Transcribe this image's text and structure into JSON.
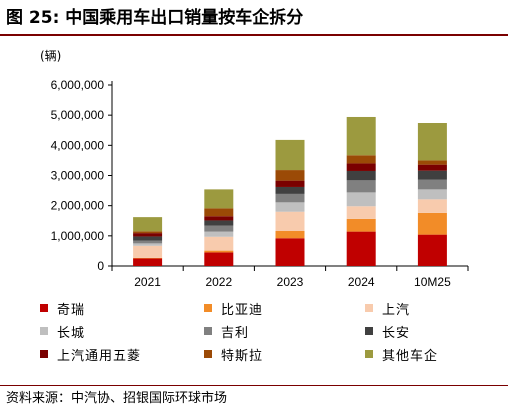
{
  "title": "图 25: 中国乘用车出口销量按车企拆分",
  "source": "资料来源：中汽协、招银国际环球市场",
  "chart_data": {
    "type": "bar",
    "stacked": true,
    "unit_label": "(辆)",
    "categories": [
      "2021",
      "2022",
      "2023",
      "2024",
      "10M25"
    ],
    "ylim": [
      0,
      6000000
    ],
    "yticks": [
      0,
      1000000,
      2000000,
      3000000,
      4000000,
      5000000,
      6000000
    ],
    "ytick_labels": [
      "0",
      "1,000,000",
      "2,000,000",
      "3,000,000",
      "4,000,000",
      "5,000,000",
      "6,000,000"
    ],
    "grid": false,
    "legend_position": "bottom",
    "series": [
      {
        "name": "奇瑞",
        "color": "#c00000",
        "values": [
          250000,
          450000,
          920000,
          1140000,
          1040000
        ]
      },
      {
        "name": "比亚迪",
        "color": "#f28c28",
        "values": [
          20000,
          60000,
          240000,
          420000,
          720000
        ]
      },
      {
        "name": "上汽",
        "color": "#f8cbad",
        "values": [
          400000,
          460000,
          640000,
          420000,
          450000
        ]
      },
      {
        "name": "长城",
        "color": "#bfbfbf",
        "values": [
          80000,
          170000,
          310000,
          460000,
          330000
        ]
      },
      {
        "name": "吉利",
        "color": "#808080",
        "values": [
          90000,
          200000,
          280000,
          400000,
          320000
        ]
      },
      {
        "name": "长安",
        "color": "#404040",
        "values": [
          140000,
          170000,
          230000,
          310000,
          300000
        ]
      },
      {
        "name": "上汽通用五菱",
        "color": "#7a0000",
        "values": [
          110000,
          140000,
          210000,
          250000,
          200000
        ]
      },
      {
        "name": "特斯拉",
        "color": "#9b4a06",
        "values": [
          60000,
          260000,
          350000,
          270000,
          140000
        ]
      },
      {
        "name": "其他车企",
        "color": "#9c9a3f",
        "values": [
          470000,
          630000,
          1000000,
          1270000,
          1240000
        ]
      }
    ]
  }
}
